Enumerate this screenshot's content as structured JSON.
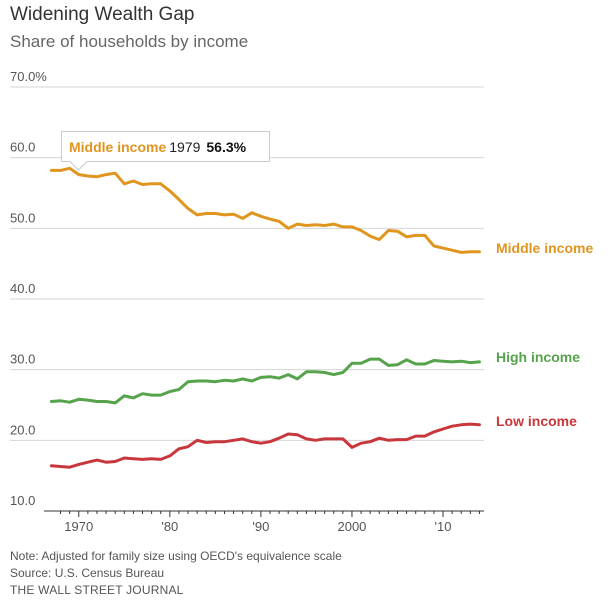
{
  "header": {
    "title": "Widening Wealth Gap",
    "subtitle": "Share of households by income"
  },
  "tooltip": {
    "series": "Middle income",
    "year": "1979",
    "value": "56.3%"
  },
  "footer": {
    "note": "Note: Adjusted for family size using OECD's equivalence scale",
    "source": "Source: U.S. Census Bureau",
    "publisher": "THE WALL STREET JOURNAL"
  },
  "colors": {
    "middle": "#e0951f",
    "high": "#55a34a",
    "low": "#c8373b",
    "grid": "#d4d4d4",
    "axis": "#333333"
  },
  "chart_data": {
    "type": "line",
    "title": "Widening Wealth Gap",
    "subtitle": "Share of households by income",
    "ylim": [
      10,
      70
    ],
    "xlim": [
      1967,
      2014
    ],
    "y_ticks": [
      {
        "value": 70,
        "label": "70.0%"
      },
      {
        "value": 60,
        "label": "60.0"
      },
      {
        "value": 50,
        "label": "50.0"
      },
      {
        "value": 40,
        "label": "40.0"
      },
      {
        "value": 30,
        "label": "30.0"
      },
      {
        "value": 20,
        "label": "20.0"
      },
      {
        "value": 10,
        "label": "10.0"
      }
    ],
    "x_ticks": [
      {
        "value": 1970,
        "label": "1970"
      },
      {
        "value": 1980,
        "label": "'80"
      },
      {
        "value": 1990,
        "label": "'90"
      },
      {
        "value": 2000,
        "label": "2000"
      },
      {
        "value": 2010,
        "label": "'10"
      }
    ],
    "grid": true,
    "x": [
      1967,
      1968,
      1969,
      1970,
      1971,
      1972,
      1973,
      1974,
      1975,
      1976,
      1977,
      1978,
      1979,
      1980,
      1981,
      1982,
      1983,
      1984,
      1985,
      1986,
      1987,
      1988,
      1989,
      1990,
      1991,
      1992,
      1993,
      1994,
      1995,
      1996,
      1997,
      1998,
      1999,
      2000,
      2001,
      2002,
      2003,
      2004,
      2005,
      2006,
      2007,
      2008,
      2009,
      2010,
      2011,
      2012,
      2013,
      2014
    ],
    "series": [
      {
        "name": "Middle income",
        "color_key": "middle",
        "values": [
          58.2,
          58.2,
          58.5,
          57.6,
          57.4,
          57.3,
          57.6,
          57.8,
          56.3,
          56.7,
          56.2,
          56.3,
          56.3,
          55.3,
          54.1,
          52.8,
          51.9,
          52.1,
          52.1,
          51.9,
          52.0,
          51.4,
          52.2,
          51.7,
          51.3,
          51.0,
          50.0,
          50.6,
          50.4,
          50.5,
          50.4,
          50.6,
          50.2,
          50.2,
          49.7,
          48.9,
          48.4,
          49.7,
          49.6,
          48.8,
          49.0,
          49.0,
          47.5,
          47.2,
          46.9,
          46.6,
          46.7,
          46.7
        ]
      },
      {
        "name": "High income",
        "color_key": "high",
        "values": [
          25.5,
          25.6,
          25.4,
          25.8,
          25.7,
          25.5,
          25.5,
          25.3,
          26.3,
          26.0,
          26.6,
          26.4,
          26.4,
          26.9,
          27.2,
          28.3,
          28.4,
          28.4,
          28.3,
          28.5,
          28.4,
          28.7,
          28.4,
          28.9,
          29.0,
          28.8,
          29.3,
          28.7,
          29.7,
          29.7,
          29.6,
          29.3,
          29.6,
          30.9,
          30.9,
          31.5,
          31.5,
          30.6,
          30.7,
          31.4,
          30.8,
          30.8,
          31.3,
          31.2,
          31.1,
          31.2,
          31.0,
          31.1
        ]
      },
      {
        "name": "Low income",
        "color_key": "low",
        "values": [
          16.4,
          16.3,
          16.2,
          16.6,
          16.9,
          17.2,
          16.9,
          17.0,
          17.5,
          17.4,
          17.3,
          17.4,
          17.3,
          17.8,
          18.8,
          19.1,
          20.0,
          19.7,
          19.8,
          19.8,
          20.0,
          20.2,
          19.8,
          19.6,
          19.8,
          20.3,
          20.9,
          20.8,
          20.2,
          20.0,
          20.2,
          20.2,
          20.2,
          19.0,
          19.6,
          19.8,
          20.3,
          20.0,
          20.1,
          20.1,
          20.6,
          20.6,
          21.2,
          21.6,
          22.0,
          22.2,
          22.3,
          22.2
        ]
      }
    ],
    "series_labels": [
      "Middle income",
      "High income",
      "Low income"
    ]
  }
}
